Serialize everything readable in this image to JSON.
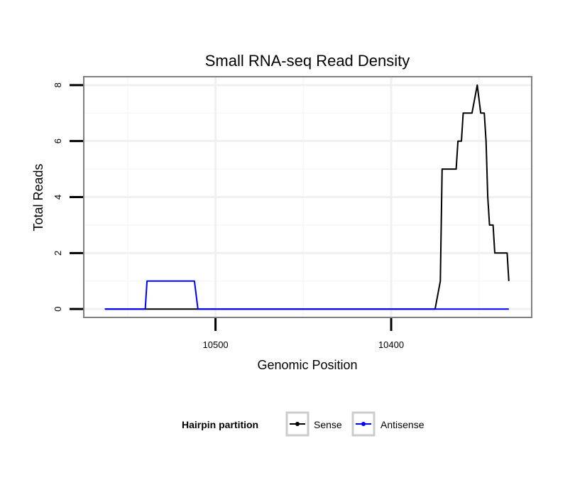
{
  "chart_data": {
    "type": "line",
    "title": "Small RNA-seq Read Density",
    "xlabel": "Genomic Position",
    "ylabel": "Total Reads",
    "x_reversed": true,
    "xlim": [
      10575,
      10320
    ],
    "ylim": [
      -0.3,
      8.3
    ],
    "x_ticks": [
      10500,
      10400
    ],
    "x_tick_labels": [
      "10500",
      "10400"
    ],
    "y_ticks": [
      0,
      2,
      4,
      6,
      8
    ],
    "y_tick_labels": [
      "0",
      "2",
      "4",
      "6",
      "8"
    ],
    "x_minor_gridlines": [
      10550,
      10450,
      10350
    ],
    "y_minor_gridlines": [
      1,
      3,
      5,
      7
    ],
    "grid": true,
    "legend": {
      "title": "Hairpin partition",
      "position": "bottom",
      "entries": [
        "Sense",
        "Antisense"
      ]
    },
    "series": [
      {
        "name": "Sense",
        "color": "#000000",
        "points": [
          [
            10563,
            0
          ],
          [
            10375,
            0
          ],
          [
            10372,
            1
          ],
          [
            10371,
            5
          ],
          [
            10363,
            5
          ],
          [
            10362,
            6
          ],
          [
            10360,
            6
          ],
          [
            10359,
            7
          ],
          [
            10354,
            7
          ],
          [
            10351,
            8
          ],
          [
            10349,
            7
          ],
          [
            10347,
            7
          ],
          [
            10346,
            6
          ],
          [
            10345,
            4
          ],
          [
            10344,
            3
          ],
          [
            10342,
            3
          ],
          [
            10341,
            2
          ],
          [
            10334,
            2
          ],
          [
            10333,
            1
          ]
        ]
      },
      {
        "name": "Antisense",
        "color": "#0000ff",
        "points": [
          [
            10563,
            0
          ],
          [
            10540,
            0
          ],
          [
            10539,
            1
          ],
          [
            10512,
            1
          ],
          [
            10510,
            0
          ],
          [
            10333,
            0
          ]
        ]
      }
    ]
  }
}
